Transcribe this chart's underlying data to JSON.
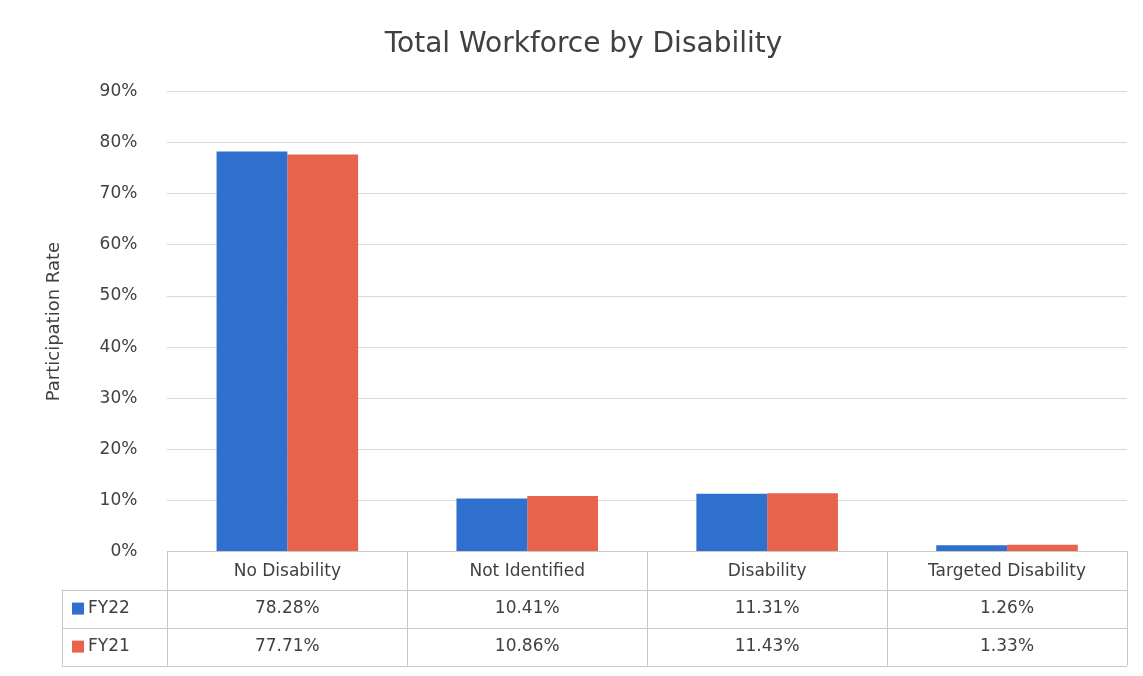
{
  "chart_data": {
    "type": "bar",
    "title": "Total Workforce by Disability",
    "ylabel": "Participation Rate",
    "categories": [
      "No Disability",
      "Not Identified",
      "Disability",
      "Targeted Disability"
    ],
    "series": [
      {
        "name": "FY22",
        "color": "#2f6fce",
        "values": [
          78.28,
          10.41,
          11.31,
          1.26
        ],
        "value_labels": [
          "78.28%",
          "10.41%",
          "11.31%",
          "1.26%"
        ]
      },
      {
        "name": "FY21",
        "color": "#e8634d",
        "values": [
          77.71,
          10.86,
          11.43,
          1.33
        ],
        "value_labels": [
          "77.71%",
          "10.86%",
          "11.43%",
          "1.33%"
        ]
      }
    ],
    "ylim": [
      0,
      90
    ],
    "yticks": [
      {
        "value": 0,
        "label": "0%"
      },
      {
        "value": 10,
        "label": "10%"
      },
      {
        "value": 20,
        "label": "20%"
      },
      {
        "value": 30,
        "label": "30%"
      },
      {
        "value": 40,
        "label": "40%"
      },
      {
        "value": 50,
        "label": "50%"
      },
      {
        "value": 60,
        "label": "60%"
      },
      {
        "value": 70,
        "label": "70%"
      },
      {
        "value": 80,
        "label": "80%"
      },
      {
        "value": 90,
        "label": "90%"
      }
    ],
    "grid": "y",
    "legend": "bottom"
  }
}
